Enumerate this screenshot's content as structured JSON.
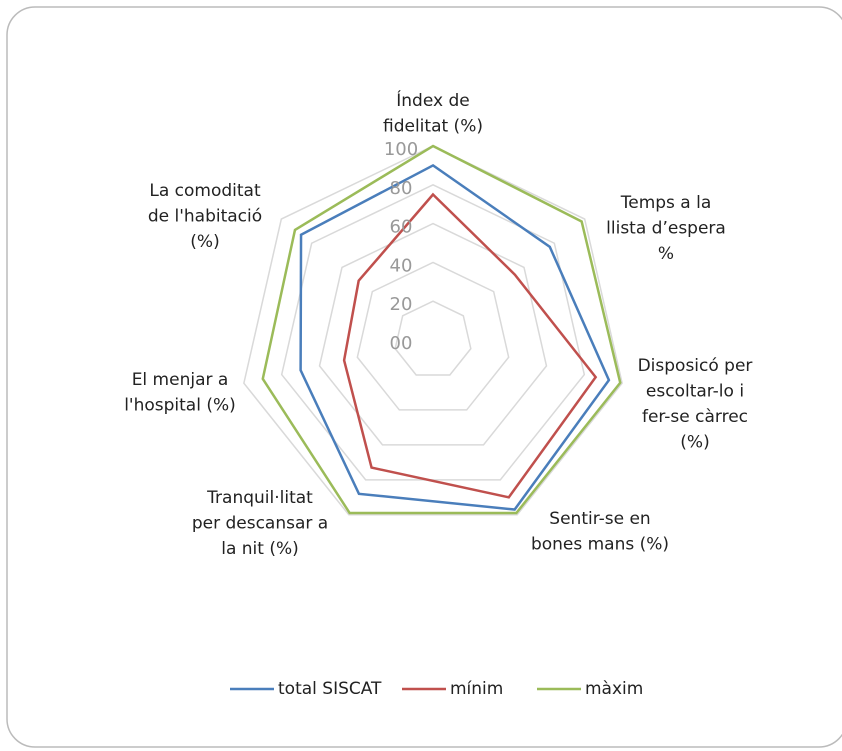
{
  "chart_data": {
    "type": "radar",
    "categories": [
      [
        "Índex de",
        "fidelitat (%)"
      ],
      [
        "Temps a la",
        "llista d’espera",
        "%"
      ],
      [
        "Disposicó per",
        "escoltar-lo i",
        "fer-se càrrec",
        "(%)"
      ],
      [
        "Sentir-se en",
        "bones mans (%)"
      ],
      [
        "Tranquil·litat",
        "per descansar a",
        "la nit (%)"
      ],
      [
        "El menjar a",
        "l'hospital (%)"
      ],
      [
        "La comoditat",
        "de l'habitació",
        "(%)"
      ]
    ],
    "series": [
      {
        "name": "total SISCAT",
        "color": "#4a7ebb",
        "values": [
          90,
          77,
          93,
          97,
          88,
          70,
          87
        ]
      },
      {
        "name": "mínim",
        "color": "#c0504d",
        "values": [
          75,
          54,
          86,
          90,
          73,
          47,
          49
        ]
      },
      {
        "name": "màxim",
        "color": "#9bbb59",
        "values": [
          100,
          98,
          99,
          99,
          99,
          90,
          91
        ]
      }
    ],
    "ylim": [
      0,
      100
    ],
    "yticks": [
      {
        "value": 0,
        "label": "00"
      },
      20,
      40,
      60,
      80,
      100
    ],
    "grid": true,
    "legend": "bottom"
  }
}
